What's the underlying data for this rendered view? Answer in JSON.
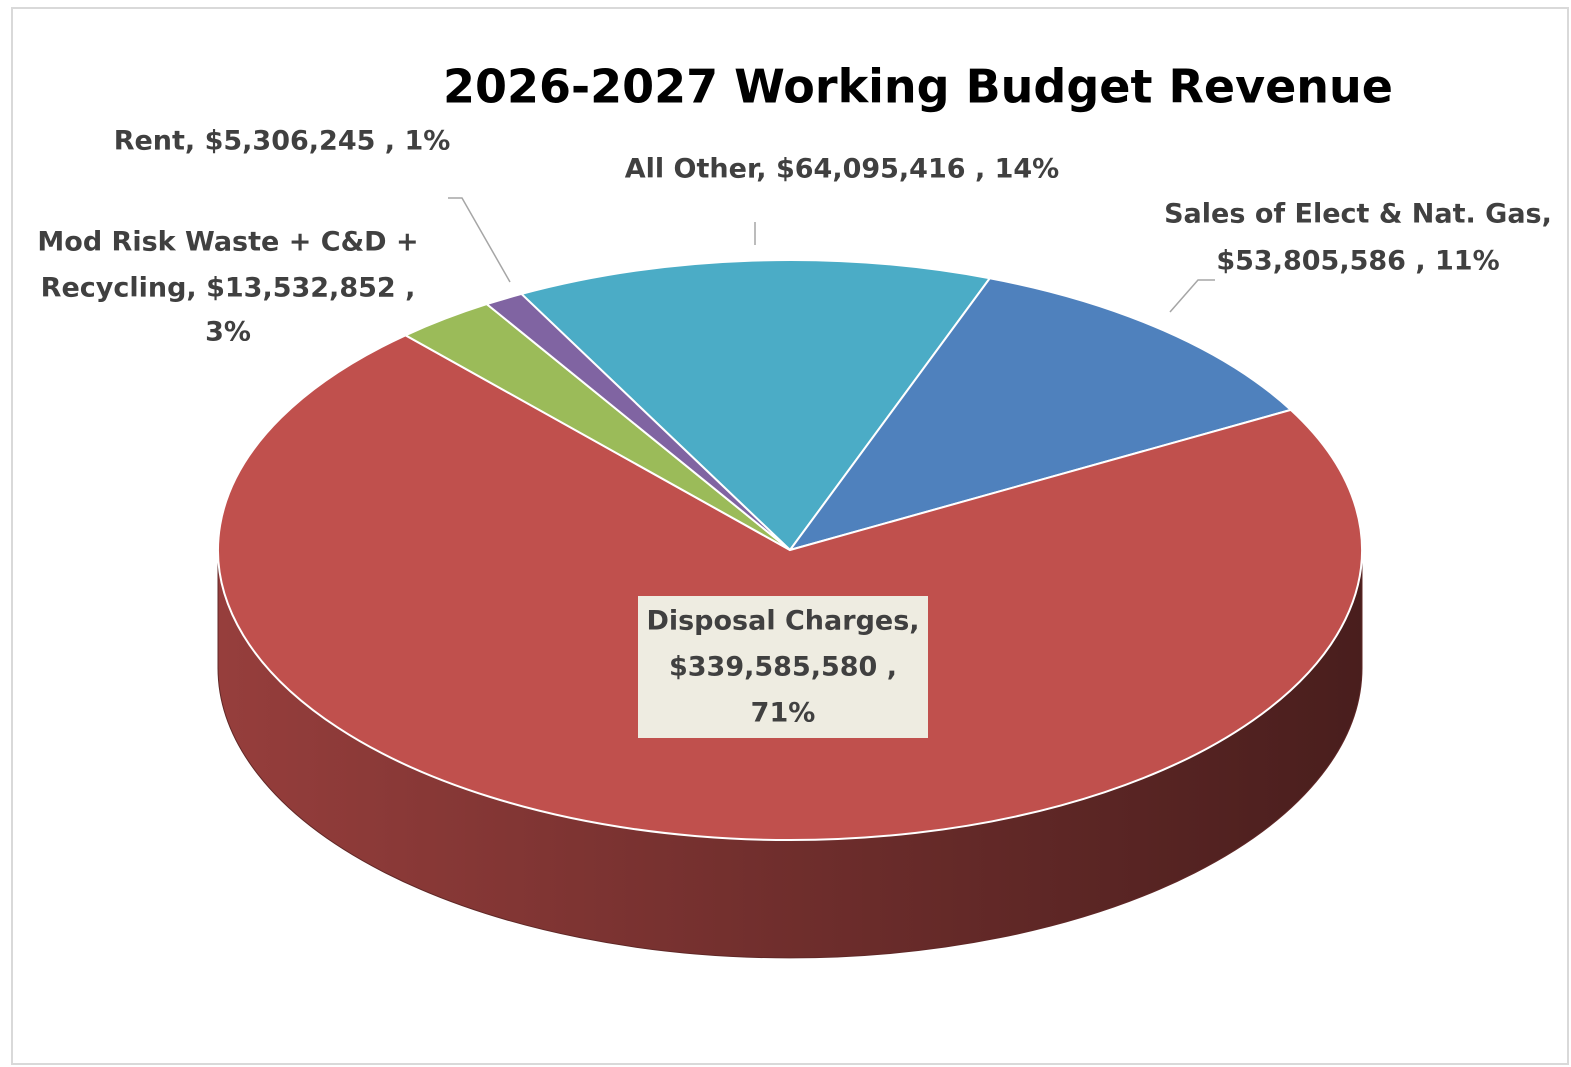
{
  "chart_data": {
    "type": "pie3d",
    "title": "2026-2027 Working Budget Revenue",
    "values": [
      64095416,
      53805586,
      339585580,
      13532852,
      5306245
    ],
    "colors": [
      "#4bacc6",
      "#4f81bd",
      "#c0504d",
      "#9bbb59",
      "#8064a2"
    ],
    "data_labels": [
      [
        "All Other,  $64,095,416 , 14%"
      ],
      [
        "Sales of Elect & Nat. Gas,",
        "$53,805,586 , 11%"
      ],
      [
        "Disposal Charges,",
        "$339,585,580 ,",
        "71%"
      ],
      [
        "Mod Risk Waste + C&D +",
        "Recycling,  $13,532,852 ,",
        "3%"
      ],
      [
        "Rent,  $5,306,245 , 1%"
      ]
    ]
  }
}
